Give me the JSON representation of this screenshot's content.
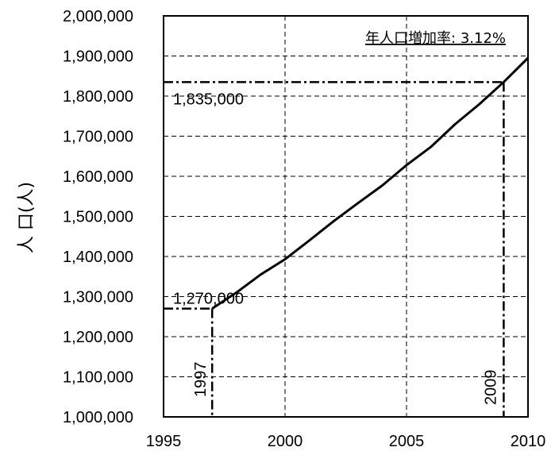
{
  "chart_data": {
    "type": "line",
    "title": "年人口増加率: 3.12%",
    "xlabel": "",
    "ylabel": "人 口(人)",
    "xlim": [
      1995,
      2010
    ],
    "ylim": [
      1000000,
      2000000
    ],
    "x_ticks": [
      "1995",
      "2000",
      "2005",
      "2010"
    ],
    "y_ticks": [
      "1,000,000",
      "1,100,000",
      "1,200,000",
      "1,300,000",
      "1,400,000",
      "1,500,000",
      "1,600,000",
      "1,700,000",
      "1,800,000",
      "1,900,000",
      "2,000,000"
    ],
    "grid": true,
    "series": [
      {
        "x": [
          1997,
          1998,
          1999,
          2000,
          2001,
          2002,
          2003,
          2004,
          2005,
          2006,
          2007,
          2008,
          2009,
          2010
        ],
        "y": [
          1270000,
          1310000,
          1355000,
          1393000,
          1440000,
          1488000,
          1533000,
          1577000,
          1628000,
          1673000,
          1730000,
          1780000,
          1835000,
          1895000
        ]
      }
    ],
    "annotations": {
      "start_year": "1997",
      "start_value": "1,270,000",
      "end_year": "2009",
      "end_value": "1,835,000"
    }
  }
}
